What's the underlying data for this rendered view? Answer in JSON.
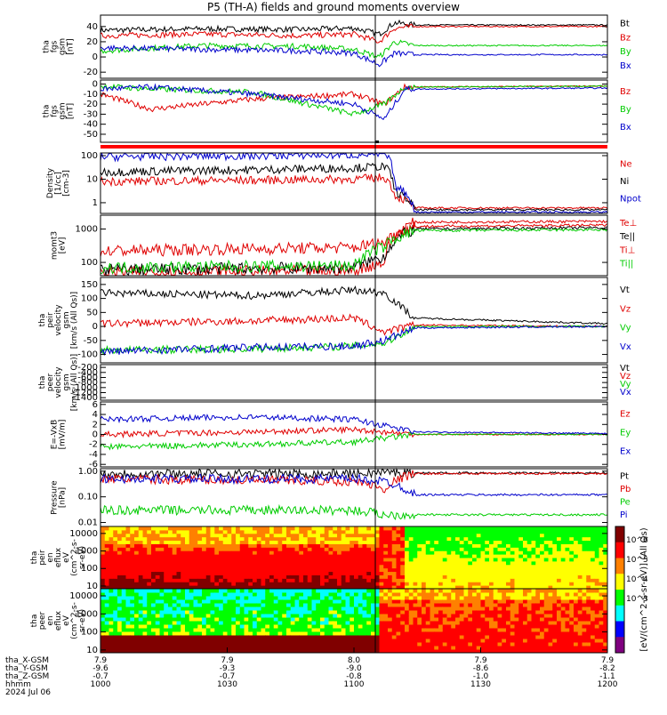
{
  "title": "P5 (TH-A) fields and ground moments overview",
  "colors": {
    "black": "#000000",
    "red": "#e00000",
    "green": "#00cc00",
    "blue": "#0000cc"
  },
  "chart_data": [
    {
      "type": "line",
      "id": "fgs_gsm_bt",
      "ylabel": [
        "tha",
        "fgs",
        "gsm",
        "[nT]"
      ],
      "yticks": [
        40,
        20,
        0,
        -20
      ],
      "ylim": [
        -28,
        55
      ],
      "legend": [
        {
          "name": "Bt",
          "color": "#000000"
        },
        {
          "name": "Bz",
          "color": "#e00000"
        },
        {
          "name": "By",
          "color": "#00cc00"
        },
        {
          "name": "Bx",
          "color": "#0000cc"
        }
      ],
      "series": [
        {
          "name": "Bt",
          "x": [
            0,
            0.2,
            0.4,
            0.5,
            0.55,
            0.58,
            0.62,
            1
          ],
          "y": [
            35,
            37,
            36,
            38,
            30,
            45,
            42,
            42
          ]
        },
        {
          "name": "Bz",
          "x": [
            0,
            0.2,
            0.4,
            0.5,
            0.55,
            0.58,
            0.62,
            1
          ],
          "y": [
            28,
            30,
            28,
            30,
            20,
            38,
            40,
            40
          ]
        },
        {
          "name": "By",
          "x": [
            0,
            0.2,
            0.4,
            0.5,
            0.55,
            0.58,
            0.62,
            1
          ],
          "y": [
            8,
            15,
            14,
            10,
            0,
            20,
            15,
            15
          ]
        },
        {
          "name": "Bx",
          "x": [
            0,
            0.2,
            0.4,
            0.5,
            0.55,
            0.58,
            0.62,
            1
          ],
          "y": [
            12,
            10,
            8,
            5,
            -10,
            5,
            3,
            3
          ]
        }
      ]
    },
    {
      "type": "line",
      "id": "fgs_gsm_b",
      "ylabel": [
        "tha",
        "fgs",
        "gsm",
        "[nT]"
      ],
      "yticks": [
        0,
        -10,
        -20,
        -30,
        -40,
        -50
      ],
      "ylim": [
        -58,
        4
      ],
      "legend": [
        {
          "name": "Bz",
          "color": "#e00000"
        },
        {
          "name": "By",
          "color": "#00cc00"
        },
        {
          "name": "Bx",
          "color": "#0000cc"
        }
      ],
      "series": [
        {
          "name": "Bz",
          "x": [
            0,
            0.1,
            0.3,
            0.5,
            0.56,
            0.6,
            1
          ],
          "y": [
            -10,
            -25,
            -15,
            -10,
            -20,
            -3,
            -2
          ]
        },
        {
          "name": "By",
          "x": [
            0,
            0.1,
            0.3,
            0.5,
            0.56,
            0.6,
            1
          ],
          "y": [
            -2,
            -5,
            -8,
            -30,
            -20,
            -3,
            -2
          ]
        },
        {
          "name": "Bx",
          "x": [
            0,
            0.1,
            0.3,
            0.5,
            0.56,
            0.6,
            1
          ],
          "y": [
            -5,
            -3,
            -10,
            -20,
            -35,
            -5,
            -4
          ]
        }
      ]
    },
    {
      "type": "line",
      "id": "density",
      "yscale": "log",
      "ylabel": [
        "Density",
        "[1/cc]",
        "[cm-3]"
      ],
      "yticks": [
        100,
        10,
        1
      ],
      "ytick_labels": [
        "100",
        "10",
        "1"
      ],
      "ylim": [
        0.35,
        130
      ],
      "legend": [
        {
          "name": "Ne",
          "color": "#e00000"
        },
        {
          "name": "Ni",
          "color": "#000000"
        },
        {
          "name": "Npot",
          "color": "#0000cc"
        }
      ],
      "series": [
        {
          "name": "Ne",
          "x": [
            0,
            0.3,
            0.5,
            0.56,
            0.58,
            0.62,
            1
          ],
          "y": [
            8,
            9,
            10,
            12,
            2,
            0.6,
            0.6
          ]
        },
        {
          "name": "Ni",
          "x": [
            0,
            0.3,
            0.5,
            0.56,
            0.58,
            0.62,
            1
          ],
          "y": [
            20,
            25,
            30,
            35,
            3,
            0.5,
            0.5
          ]
        },
        {
          "name": "Npot",
          "x": [
            0,
            0.3,
            0.5,
            0.56,
            0.58,
            0.62,
            1
          ],
          "y": [
            90,
            100,
            110,
            120,
            5,
            0.4,
            0.4
          ]
        }
      ]
    },
    {
      "type": "line",
      "id": "moms_temp",
      "yscale": "log",
      "ylabel": [
        "momt3",
        "[eV]"
      ],
      "yticks": [
        1000,
        100
      ],
      "ytick_labels": [
        "1000",
        "100"
      ],
      "ylim": [
        40,
        2600
      ],
      "legend": [
        {
          "name": "Te⊥",
          "color": "#e00000"
        },
        {
          "name": "Te||",
          "color": "#000000"
        },
        {
          "name": "Ti⊥",
          "color": "#e00000"
        },
        {
          "name": "Ti||",
          "color": "#00cc00"
        }
      ],
      "series": [
        {
          "name": "Te⊥",
          "x": [
            0,
            0.5,
            0.56,
            0.62,
            1
          ],
          "y": [
            50,
            55,
            100,
            1600,
            1700
          ]
        },
        {
          "name": "Te||",
          "x": [
            0,
            0.5,
            0.56,
            0.62,
            1
          ],
          "y": [
            60,
            70,
            150,
            1000,
            1100
          ]
        },
        {
          "name": "Ti⊥",
          "x": [
            0,
            0.5,
            0.56,
            0.62,
            1
          ],
          "y": [
            220,
            280,
            400,
            1200,
            1300
          ]
        },
        {
          "name": "Ti||",
          "x": [
            0,
            0.5,
            0.56,
            0.62,
            1
          ],
          "y": [
            70,
            80,
            300,
            900,
            950
          ]
        }
      ]
    },
    {
      "type": "line",
      "id": "peir_velocity",
      "ylabel": [
        "tha",
        "peir",
        "velocity",
        "gsm",
        "[km/s (All Qs)]"
      ],
      "yticks": [
        150,
        100,
        50,
        0,
        -50,
        -100
      ],
      "ylim": [
        -130,
        175
      ],
      "legend": [
        {
          "name": "Vt",
          "color": "#000000"
        },
        {
          "name": "Vz",
          "color": "#e00000"
        },
        {
          "name": "Vy",
          "color": "#00cc00"
        },
        {
          "name": "Vx",
          "color": "#0000cc"
        }
      ],
      "series": [
        {
          "name": "Vt",
          "x": [
            0,
            0.3,
            0.5,
            0.56,
            0.62,
            1
          ],
          "y": [
            120,
            110,
            130,
            120,
            30,
            10
          ]
        },
        {
          "name": "Vz",
          "x": [
            0,
            0.3,
            0.5,
            0.56,
            0.62,
            1
          ],
          "y": [
            10,
            20,
            30,
            -20,
            5,
            0
          ]
        },
        {
          "name": "Vy",
          "x": [
            0,
            0.3,
            0.5,
            0.56,
            0.62,
            1
          ],
          "y": [
            -85,
            -80,
            -70,
            -60,
            0,
            0
          ]
        },
        {
          "name": "Vx",
          "x": [
            0,
            0.3,
            0.5,
            0.56,
            0.62,
            1
          ],
          "y": [
            -90,
            -75,
            -70,
            -50,
            -5,
            0
          ]
        }
      ]
    },
    {
      "type": "line",
      "id": "peer_velocity",
      "ylabel": [
        "tha",
        "peer",
        "velocity",
        "gsm",
        "[km/s (All Qs)]"
      ],
      "yticks": [
        -200,
        -400,
        -600,
        -800,
        -1000,
        -1200,
        -1400
      ],
      "ylim": [
        -1500,
        -90
      ],
      "legend": [
        {
          "name": "Vt",
          "color": "#000000"
        },
        {
          "name": "Vz",
          "color": "#e00000"
        },
        {
          "name": "Vy",
          "color": "#00cc00"
        },
        {
          "name": "Vx",
          "color": "#0000cc"
        }
      ],
      "series": []
    },
    {
      "type": "line",
      "id": "efield",
      "ylabel": [
        "E=-VxB",
        "[mV/m]"
      ],
      "yticks": [
        6,
        4,
        2,
        0,
        -2,
        -4,
        -6
      ],
      "ylim": [
        -6.5,
        6.5
      ],
      "legend": [
        {
          "name": "Ez",
          "color": "#e00000"
        },
        {
          "name": "Ey",
          "color": "#00cc00"
        },
        {
          "name": "Ex",
          "color": "#0000cc"
        }
      ],
      "series": [
        {
          "name": "Ez",
          "x": [
            0,
            0.3,
            0.5,
            0.62,
            1
          ],
          "y": [
            0,
            0.5,
            1,
            0,
            0
          ]
        },
        {
          "name": "Ey",
          "x": [
            0,
            0.3,
            0.5,
            0.62,
            1
          ],
          "y": [
            -2.5,
            -2,
            -1.5,
            0,
            0
          ]
        },
        {
          "name": "Ex",
          "x": [
            0,
            0.3,
            0.5,
            0.62,
            1
          ],
          "y": [
            3,
            3.5,
            3,
            0.5,
            0.2
          ]
        }
      ]
    },
    {
      "type": "line",
      "id": "pressure",
      "yscale": "log",
      "ylabel": [
        "Pressure",
        "[nPa]"
      ],
      "yticks": [
        1,
        0.1,
        0.01
      ],
      "ytick_labels": [
        "1.00",
        "0.10",
        "0.01"
      ],
      "ylim": [
        0.007,
        1.25
      ],
      "legend": [
        {
          "name": "Pt",
          "color": "#000000"
        },
        {
          "name": "Pb",
          "color": "#e00000"
        },
        {
          "name": "Pe",
          "color": "#00cc00"
        },
        {
          "name": "Pi",
          "color": "#0000cc"
        }
      ],
      "series": [
        {
          "name": "Pt",
          "x": [
            0,
            0.5,
            0.56,
            0.62,
            1
          ],
          "y": [
            0.8,
            0.8,
            0.9,
            0.85,
            0.85
          ]
        },
        {
          "name": "Pb",
          "x": [
            0,
            0.5,
            0.56,
            0.62,
            1
          ],
          "y": [
            0.5,
            0.4,
            0.2,
            0.8,
            0.8
          ]
        },
        {
          "name": "Pe",
          "x": [
            0,
            0.5,
            0.56,
            0.62,
            1
          ],
          "y": [
            0.03,
            0.03,
            0.02,
            0.02,
            0.02
          ]
        },
        {
          "name": "Pi",
          "x": [
            0,
            0.5,
            0.56,
            0.62,
            1
          ],
          "y": [
            0.5,
            0.5,
            0.4,
            0.12,
            0.12
          ]
        }
      ]
    },
    {
      "type": "heatmap",
      "id": "peir_en_eflux",
      "yscale": "log",
      "ylabel": [
        "tha",
        "peir",
        "en",
        "eflux",
        "eV",
        "(cm^2-s-",
        "sr-eV)"
      ],
      "yticks": [
        10000,
        1000,
        100,
        10
      ],
      "ytick_labels": [
        "10000",
        "1000",
        "100",
        "10"
      ],
      "ylim": [
        7,
        25000
      ]
    },
    {
      "type": "heatmap",
      "id": "peer_en_eflux",
      "yscale": "log",
      "ylabel": [
        "tha",
        "peer",
        "en",
        "eflux",
        "eV",
        "(cm^2-s-",
        "sr-eV)"
      ],
      "yticks": [
        10000,
        1000,
        100,
        10
      ],
      "ytick_labels": [
        "10000",
        "1000",
        "100",
        "10"
      ],
      "ylim": [
        7,
        25000
      ]
    }
  ],
  "colorbar": {
    "label": "[eV/(cm^2-s-sr-eV)] (All Qs)",
    "ticks": [
      "10^6",
      "10^5",
      "10^4",
      "10^3"
    ],
    "colors": [
      "#7f007f",
      "#0000ff",
      "#00ffff",
      "#00ff00",
      "#ffff00",
      "#ff8000",
      "#ff0000",
      "#800000"
    ]
  },
  "time_axis": {
    "ticks": [
      "1000",
      "1030",
      "1100",
      "1130",
      "1200"
    ],
    "row_labels": [
      "tha_X-GSM",
      "tha_Y-GSM",
      "tha_Z-GSM",
      "hhmm",
      "2024 Jul 06"
    ],
    "x_gsm": [
      "7.9",
      "7.9",
      "8.0",
      "7.9",
      "7.9"
    ],
    "y_gsm": [
      "-9.6",
      "-9.3",
      "-9.0",
      "-8.6",
      "-8.2"
    ],
    "z_gsm": [
      "-0.7",
      "-0.7",
      "-0.8",
      "-1.0",
      "-1.1"
    ]
  }
}
